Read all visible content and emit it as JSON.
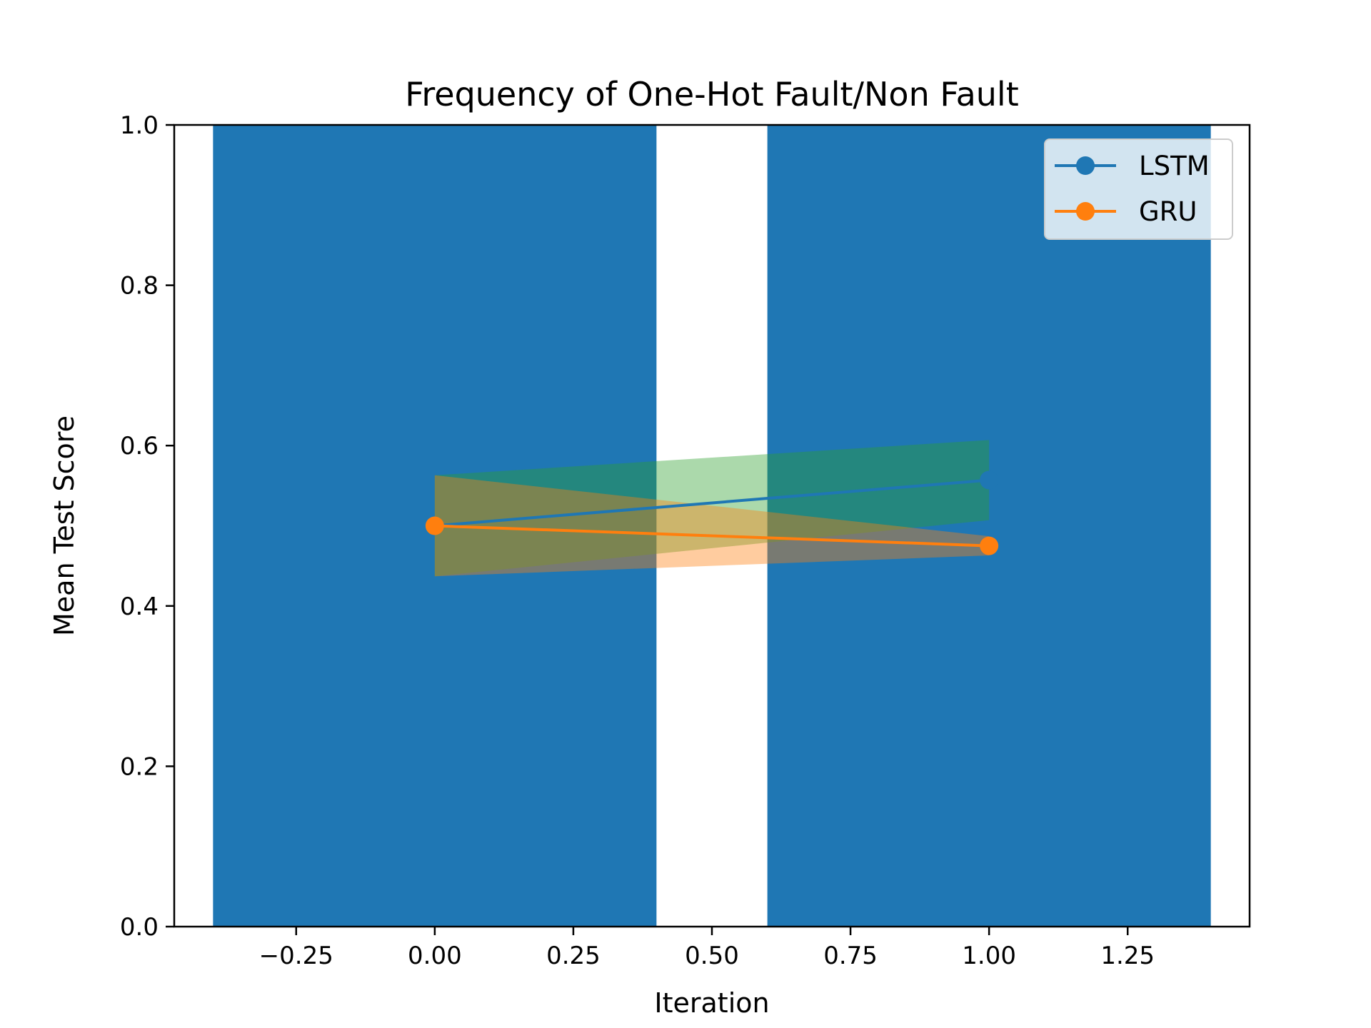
{
  "chart_data": {
    "type": "line",
    "title": "Frequency of One-Hot Fault/Non Fault",
    "xlabel": "Iteration",
    "ylabel": "Mean Test Score",
    "xlim": [
      -0.47,
      1.47
    ],
    "ylim": [
      0.0,
      1.0
    ],
    "xticks": [
      -0.25,
      0.0,
      0.25,
      0.5,
      0.75,
      1.0,
      1.25
    ],
    "xtick_labels": [
      "−0.25",
      "0.00",
      "0.25",
      "0.50",
      "0.75",
      "1.00",
      "1.25"
    ],
    "yticks": [
      0.0,
      0.2,
      0.4,
      0.6,
      0.8,
      1.0
    ],
    "ytick_labels": [
      "0.0",
      "0.2",
      "0.4",
      "0.6",
      "0.8",
      "1.0"
    ],
    "bars": {
      "color": "#1f77b4",
      "categories": [
        0,
        1
      ],
      "values": [
        1.0,
        1.0
      ],
      "width": 0.8
    },
    "series": [
      {
        "name": "LSTM",
        "color": "#1f77b4",
        "band_color": "#2ca02c",
        "x": [
          0,
          1
        ],
        "y": [
          0.5,
          0.557
        ],
        "lower": [
          0.437,
          0.507
        ],
        "upper": [
          0.563,
          0.607
        ]
      },
      {
        "name": "GRU",
        "color": "#ff7f0e",
        "band_color": "#ff7f0e",
        "x": [
          0,
          1
        ],
        "y": [
          0.5,
          0.475
        ],
        "lower": [
          0.437,
          0.463
        ],
        "upper": [
          0.563,
          0.487
        ]
      }
    ],
    "legend": {
      "placement": "top-right",
      "entries": [
        "LSTM",
        "GRU"
      ]
    },
    "grid": false
  }
}
